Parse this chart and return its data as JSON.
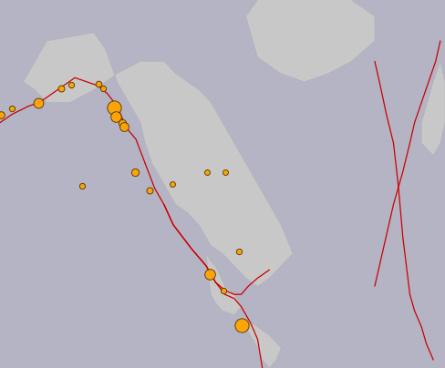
{
  "earthquakes": [
    {
      "lon": -179.5,
      "lat": 52.0,
      "size": 30
    },
    {
      "lon": -175.0,
      "lat": 53.5,
      "size": 20
    },
    {
      "lon": -163.5,
      "lat": 54.8,
      "size": 60
    },
    {
      "lon": -154.0,
      "lat": 58.5,
      "size": 25
    },
    {
      "lon": -149.5,
      "lat": 59.2,
      "size": 20
    },
    {
      "lon": -138.0,
      "lat": 59.5,
      "size": 22
    },
    {
      "lon": -136.0,
      "lat": 58.5,
      "size": 20
    },
    {
      "lon": -131.5,
      "lat": 53.8,
      "size": 120
    },
    {
      "lon": -130.5,
      "lat": 51.5,
      "size": 70
    },
    {
      "lon": -128.0,
      "lat": 50.0,
      "size": 35
    },
    {
      "lon": -127.0,
      "lat": 49.0,
      "size": 50
    },
    {
      "lon": -122.5,
      "lat": 37.8,
      "size": 35
    },
    {
      "lon": -116.0,
      "lat": 33.5,
      "size": 25
    },
    {
      "lon": -106.5,
      "lat": 35.0,
      "size": 18
    },
    {
      "lon": -91.5,
      "lat": 38.0,
      "size": 18
    },
    {
      "lon": -84.0,
      "lat": 38.0,
      "size": 18
    },
    {
      "lon": -145.0,
      "lat": 34.5,
      "size": 20
    },
    {
      "lon": -90.5,
      "lat": 13.0,
      "size": 70
    },
    {
      "lon": -84.5,
      "lat": 9.0,
      "size": 20
    },
    {
      "lon": -78.0,
      "lat": 18.5,
      "size": 20
    },
    {
      "lon": -77.0,
      "lat": 0.5,
      "size": 120
    }
  ],
  "plate_boundaries": {
    "aleutian": {
      "lons": [
        -180,
        -175,
        -168,
        -163,
        -158,
        -153,
        -148,
        -143,
        -138
      ],
      "lats": [
        50,
        52,
        54,
        55,
        57,
        59,
        61,
        60,
        59
      ]
    },
    "cascadia": {
      "lons": [
        -138,
        -134,
        -130,
        -127,
        -125,
        -122,
        -120,
        -118
      ],
      "lats": [
        59,
        57,
        54,
        50,
        48,
        46,
        43,
        40
      ]
    },
    "san_andreas": {
      "lons": [
        -118,
        -116,
        -114,
        -110,
        -106,
        -102,
        -98,
        -95,
        -92,
        -90,
        -88
      ],
      "lats": [
        40,
        37,
        34,
        30,
        25,
        22,
        19,
        17,
        15,
        13,
        11
      ]
    },
    "caribbean_n": {
      "lons": [
        -88,
        -84,
        -80,
        -77,
        -74,
        -70,
        -65
      ],
      "lats": [
        11,
        9,
        8,
        8,
        10,
        12,
        14
      ]
    },
    "central_america": {
      "lons": [
        -88,
        -90,
        -92,
        -95,
        -98,
        -102,
        -106,
        -110
      ],
      "lats": [
        11,
        13,
        15,
        17,
        19,
        22,
        25,
        30
      ]
    },
    "south_am": {
      "lons": [
        -88,
        -84,
        -80,
        -77,
        -75,
        -73,
        -70,
        -68,
        -70,
        -72
      ],
      "lats": [
        11,
        8,
        7,
        5,
        3,
        1,
        -3,
        -10,
        -20,
        -30
      ]
    },
    "mid_atlantic_r": {
      "lons": [
        -20,
        -18,
        -15,
        -12,
        -10,
        -8,
        -5
      ],
      "lats": [
        65,
        60,
        52,
        45,
        35,
        22,
        8
      ]
    },
    "mid_atlantic_r2": {
      "lons": [
        -5,
        -3,
        0,
        2,
        5
      ],
      "lats": [
        8,
        4,
        0,
        -4,
        -8
      ]
    },
    "right_top": {
      "lons": [
        8,
        6,
        3,
        0,
        -3,
        -5,
        -8,
        -12,
        -16,
        -20
      ],
      "lats": [
        70,
        65,
        60,
        55,
        50,
        45,
        38,
        30,
        20,
        10
      ]
    }
  },
  "marker_color": "#FFA500",
  "marker_edge_color": "#5a3a00",
  "plate_color": "#cc0000",
  "bg_land": "#c8c8c8",
  "bg_ocean": "#b4b4c4",
  "bg_figure": "#b4b4c4",
  "lon_min": -180,
  "lon_max": 10,
  "lat_min": -10,
  "lat_max": 80
}
